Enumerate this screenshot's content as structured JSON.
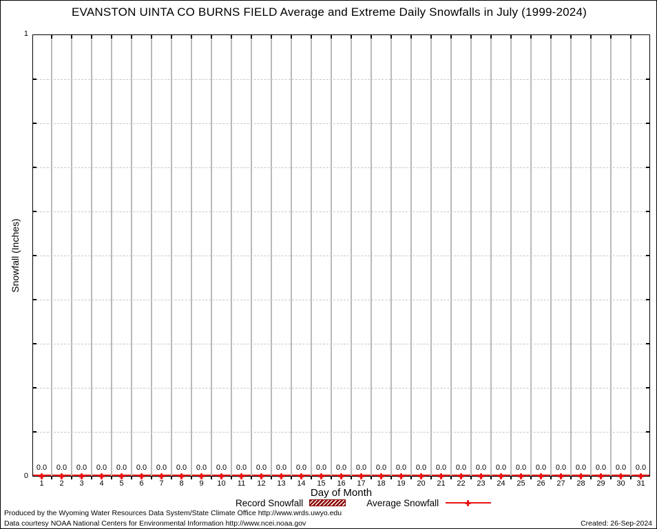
{
  "title": "EVANSTON UINTA CO BURNS FIELD Average and Extreme Daily Snowfalls in July (1999-2024)",
  "chart_data": {
    "type": "bar",
    "subtype": "bar-line-combo",
    "title": "EVANSTON UINTA CO BURNS FIELD Average and Extreme Daily Snowfalls in July (1999-2024)",
    "categories": [
      1,
      2,
      3,
      4,
      5,
      6,
      7,
      8,
      9,
      10,
      11,
      12,
      13,
      14,
      15,
      16,
      17,
      18,
      19,
      20,
      21,
      22,
      23,
      24,
      25,
      26,
      27,
      28,
      29,
      30,
      31
    ],
    "series": [
      {
        "name": "Record Snowfall",
        "type": "bar",
        "color": "#8b0000",
        "values": [
          0,
          0,
          0,
          0,
          0,
          0,
          0,
          0,
          0,
          0,
          0,
          0,
          0,
          0,
          0,
          0,
          0,
          0,
          0,
          0,
          0,
          0,
          0,
          0,
          0,
          0,
          0,
          0,
          0,
          0,
          0
        ]
      },
      {
        "name": "Average Snowfall",
        "type": "line",
        "color": "#e81414",
        "values": [
          0,
          0,
          0,
          0,
          0,
          0,
          0,
          0,
          0,
          0,
          0,
          0,
          0,
          0,
          0,
          0,
          0,
          0,
          0,
          0,
          0,
          0,
          0,
          0,
          0,
          0,
          0,
          0,
          0,
          0,
          0
        ]
      }
    ],
    "value_labels": [
      "0.0",
      "0.0",
      "0.0",
      "0.0",
      "0.0",
      "0.0",
      "0.0",
      "0.0",
      "0.0",
      "0.0",
      "0.0",
      "0.0",
      "0.0",
      "0.0",
      "0.0",
      "0.0",
      "0.0",
      "0.0",
      "0.0",
      "0.0",
      "0.0",
      "0.0",
      "0.0",
      "0.0",
      "0.0",
      "0.0",
      "0.0",
      "0.0",
      "0.0",
      "0.0",
      "0.0"
    ],
    "xlabel": "Day of Month",
    "ylabel": "Snowfall (Inches)",
    "ylim": [
      0,
      1
    ],
    "yticks": {
      "min": "0",
      "max": "1"
    },
    "grid": {
      "vertical": "solid gray between day columns",
      "horizontal": "dashed gray every 0.1"
    },
    "legend_position": "bottom-center"
  },
  "footer": {
    "line1": "Produced by the Wyoming Water Resources Data System/State Climate Office http://www.wrds.uwyo.edu",
    "line2": "Data courtesy NOAA National Centers for Environmental Information http://www.ncei.noaa.gov",
    "created": "Created: 26-Sep-2024"
  }
}
